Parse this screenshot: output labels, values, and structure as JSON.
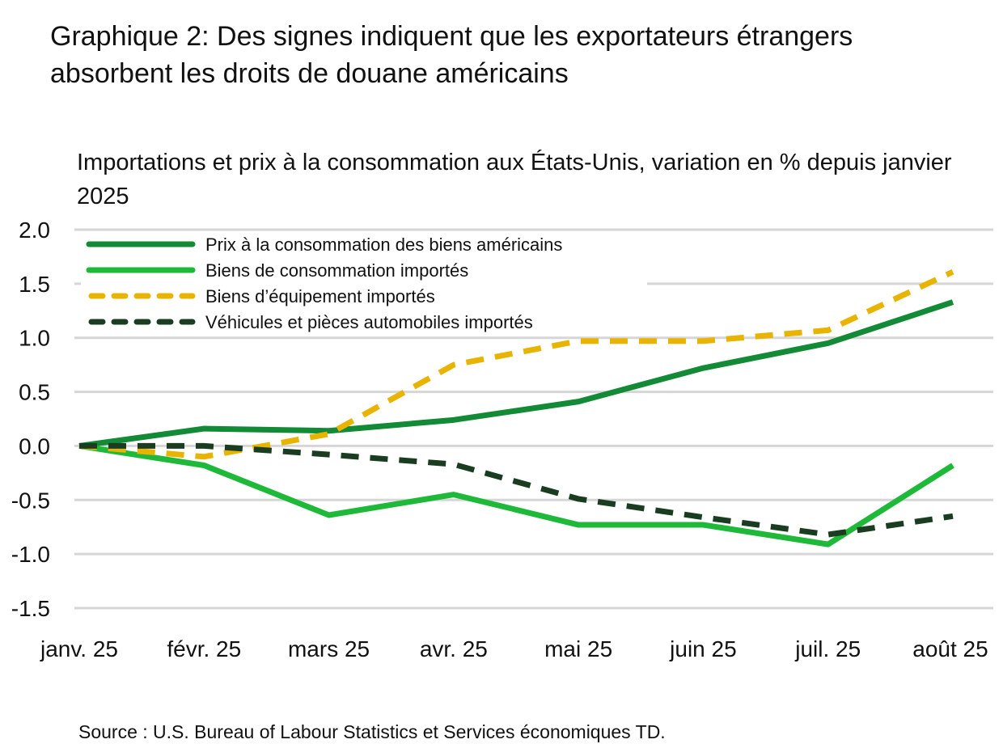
{
  "chart_data": {
    "type": "line",
    "title": "Graphique 2: Des signes indiquent que les exportateurs étrangers absorbent les droits de douane américains",
    "subtitle": "Importations et prix à la consommation aux États-Unis, variation en % depuis janvier 2025",
    "source": "Source : U.S. Bureau of Labour Statistics et Services économiques TD.",
    "categories": [
      "janv. 25",
      "févr. 25",
      "mars 25",
      "avr. 25",
      "mai 25",
      "juin 25",
      "juil. 25",
      "août 25"
    ],
    "ylim": [
      -1.5,
      2.0
    ],
    "yticks": [
      "2.0",
      "1.5",
      "1.0",
      "0.5",
      "0.0",
      "-0.5",
      "-1.0",
      "-1.5"
    ],
    "ytick_values": [
      2.0,
      1.5,
      1.0,
      0.5,
      0.0,
      -0.5,
      -1.0,
      -1.5
    ],
    "grid": "horizontal",
    "legend_position": "top-left",
    "series": [
      {
        "name": "Prix à la consommation des biens américains",
        "color": "#138a36",
        "dash": "solid",
        "values": [
          0,
          0.16,
          0.14,
          0.24,
          0.41,
          0.72,
          0.95,
          1.33
        ]
      },
      {
        "name": "Biens de consommation importés",
        "color": "#1fb93a",
        "dash": "solid",
        "values": [
          0,
          -0.18,
          -0.64,
          -0.45,
          -0.73,
          -0.73,
          -0.91,
          -0.18
        ]
      },
      {
        "name": "Biens d’équipement importés",
        "color": "#e8b400",
        "dash": "dashed",
        "values": [
          0,
          -0.1,
          0.11,
          0.75,
          0.97,
          0.97,
          1.07,
          1.61
        ]
      },
      {
        "name": "Véhicules et pièces automobiles importés",
        "color": "#1a3d22",
        "dash": "dashed",
        "values": [
          0,
          0,
          -0.08,
          -0.17,
          -0.49,
          -0.66,
          -0.82,
          -0.65
        ]
      }
    ]
  }
}
